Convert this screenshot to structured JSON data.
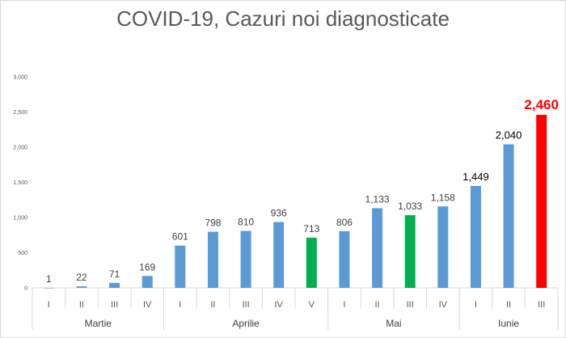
{
  "chart_data": {
    "type": "bar",
    "title": "COVID-19, Cazuri noi diagnosticate",
    "ylim": [
      0,
      3000
    ],
    "yticks": [
      "0",
      "500",
      "1,000",
      "1,500",
      "2,000",
      "2,500",
      "3,000"
    ],
    "ytick_values": [
      0,
      500,
      1000,
      1500,
      2000,
      2500,
      3000
    ],
    "grid": false,
    "groups": [
      {
        "name": "Martie",
        "categories": [
          "I",
          "II",
          "III",
          "IV"
        ]
      },
      {
        "name": "Aprilie",
        "categories": [
          "I",
          "II",
          "III",
          "IV",
          "V"
        ]
      },
      {
        "name": "Mai",
        "categories": [
          "I",
          "II",
          "III",
          "IV"
        ]
      },
      {
        "name": "Iunie",
        "categories": [
          "I",
          "II",
          "III"
        ]
      }
    ],
    "values": [
      1,
      22,
      71,
      169,
      601,
      798,
      810,
      936,
      713,
      806,
      1133,
      1033,
      1158,
      1449,
      2040,
      2460
    ],
    "labels": [
      "1",
      "22",
      "71",
      "169",
      "601",
      "798",
      "810",
      "936",
      "713",
      "806",
      "1,133",
      "1,033",
      "1,158",
      "1,449",
      "2,040",
      "2,460"
    ],
    "colors": [
      "#5b9bd5",
      "#5b9bd5",
      "#5b9bd5",
      "#5b9bd5",
      "#5b9bd5",
      "#5b9bd5",
      "#5b9bd5",
      "#5b9bd5",
      "#00b050",
      "#5b9bd5",
      "#5b9bd5",
      "#00b050",
      "#5b9bd5",
      "#5b9bd5",
      "#5b9bd5",
      "#ff0000"
    ],
    "highlight_label_color": "#ff0000"
  }
}
